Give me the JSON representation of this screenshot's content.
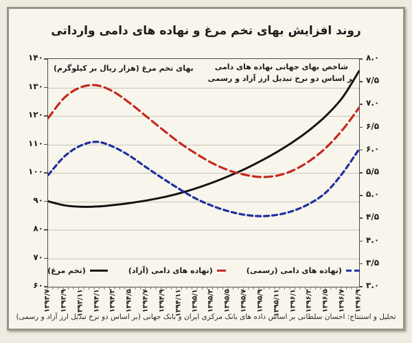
{
  "title": "روند افزایش بهای تخم مرغ و نهاده های دامی وارداتی",
  "footer": "تحلیل و استنتاج: احسان سلطانی بر اساس داده های بانک مرکزی ایران و بانک جهانی (بر اساس دو نرخ تبدیل ارز آزاد و رسمی)",
  "axes_titles": {
    "left": "بهای تخم مرغ (هزار ریال بر کیلوگرم)",
    "right_line1": "شاخص بهای جهانی نهاده های دامی",
    "right_line2": "بر اساس دو نرخ تبدیل ارز آزاد و رسمی"
  },
  "colors": {
    "background_outer": "#efebe0",
    "background_inner": "#f8f5ed",
    "frame_border": "#97948b",
    "plot_border": "#4a4a4a",
    "gridline": "#c6c2b8",
    "egg_line": "#141414",
    "azad_line": "#c5281c",
    "rasmi_line": "#1e2f9d",
    "text": "#1b1b1b"
  },
  "chart_data": {
    "type": "line",
    "title": "روند افزایش بهای تخم مرغ و نهاده های دامی وارداتی",
    "grid": "horizontal",
    "legend_position": "inside-bottom-center",
    "categories": [
      "۱۳۹۳/۷",
      "۱۳۹۳/۹",
      "۱۳۹۳/۱۱",
      "۱۳۹۴/۱",
      "۱۳۹۴/۳",
      "۱۳۹۴/۵",
      "۱۳۹۴/۷",
      "۱۳۹۴/۹",
      "۱۳۹۴/۱۱",
      "۱۳۹۵/۱",
      "۱۳۹۵/۳",
      "۱۳۹۵/۵",
      "۱۳۹۵/۷",
      "۱۳۹۵/۹",
      "۱۳۹۵/۱۱",
      "۱۳۹۶/۱",
      "۱۳۹۶/۳",
      "۱۳۹۶/۵",
      "۱۳۹۶/۷",
      "۱۳۹۶/۹"
    ],
    "left_axis": {
      "title": "بهای تخم مرغ (هزار ریال بر کیلوگرم)",
      "min": 60,
      "max": 140,
      "step": 10,
      "tick_labels": [
        "۱۴۰",
        "۱۳۰",
        "۱۲۰",
        "۱۱۰",
        "۱۰۰",
        "۹۰",
        "۸۰",
        "۷۰",
        "۶۰"
      ]
    },
    "right_axis": {
      "title": "شاخص بهای جهانی نهاده های دامی بر اساس دو نرخ تبدیل ارز آزاد و رسمی",
      "min": 3.0,
      "max": 8.0,
      "step": 0.5,
      "tick_labels": [
        "۸.۰",
        "۷/۵",
        "۷.۰",
        "۶/۵",
        "۶.۰",
        "۵/۵",
        "۵.۰",
        "۴/۵",
        "۴.۰",
        "۳/۵",
        "۳.۰"
      ]
    },
    "series": [
      {
        "key": "egg",
        "name": "(تخم مرغ)",
        "axis": "left",
        "style": "solid",
        "color": "#141414",
        "values": [
          90,
          88.6,
          88.1,
          88.2,
          88.7,
          89.4,
          90.3,
          91.4,
          92.8,
          94.5,
          96.5,
          98.8,
          101.3,
          104.2,
          107.4,
          111,
          115.2,
          120.2,
          126.6,
          135.8
        ]
      },
      {
        "key": "azad",
        "name": "(نهاده های دامی (آزاد)",
        "axis": "right",
        "style": "dashed",
        "color": "#c5281c",
        "values": [
          6.7,
          7.15,
          7.38,
          7.42,
          7.28,
          7.03,
          6.74,
          6.45,
          6.17,
          5.93,
          5.72,
          5.56,
          5.46,
          5.41,
          5.44,
          5.56,
          5.77,
          6.06,
          6.45,
          6.93
        ]
      },
      {
        "key": "rasmi",
        "name": "(نهاده های دامی (رسمی)",
        "axis": "right",
        "style": "dashed-short",
        "color": "#1e2f9d",
        "values": [
          5.45,
          5.86,
          6.1,
          6.18,
          6.07,
          5.87,
          5.62,
          5.38,
          5.15,
          4.94,
          4.78,
          4.66,
          4.58,
          4.55,
          4.58,
          4.67,
          4.83,
          5.08,
          5.5,
          6.02
        ]
      }
    ]
  }
}
